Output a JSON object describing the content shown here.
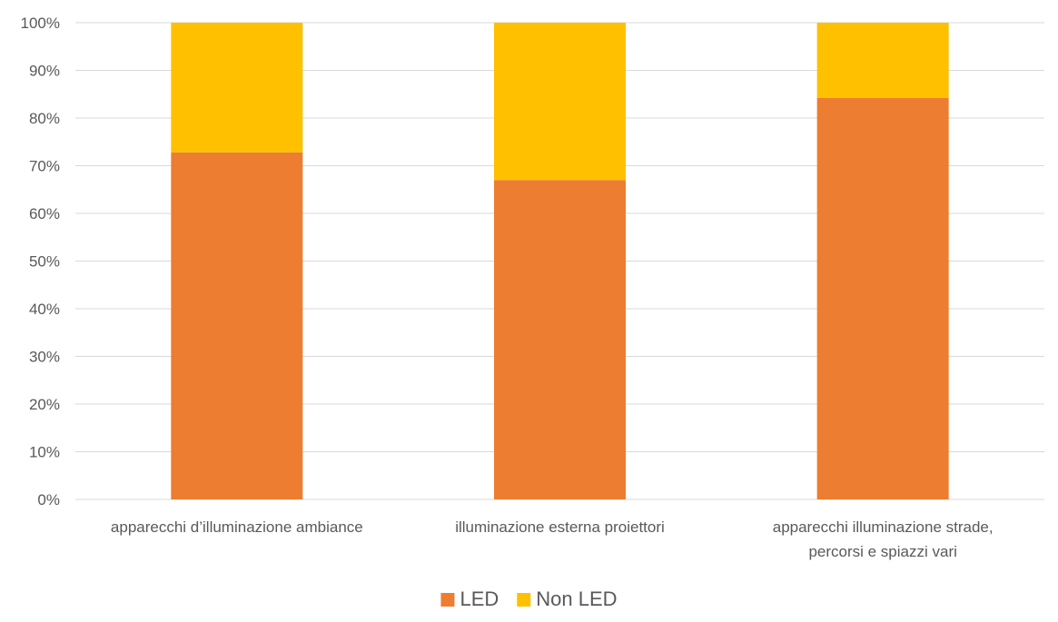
{
  "chart_data": {
    "type": "bar",
    "stacked": "percent",
    "categories": [
      [
        "apparecchi d’illuminazione ambiance"
      ],
      [
        "illuminazione esterna proiettori"
      ],
      [
        "apparecchi illuminazione strade,",
        "percorsi e spiazzi vari"
      ]
    ],
    "series": [
      {
        "name": "LED",
        "values": [
          72.8,
          67.0,
          84.2
        ],
        "color": "#ED7D31"
      },
      {
        "name": "Non LED",
        "values": [
          27.2,
          33.0,
          15.8
        ],
        "color": "#FFC000"
      }
    ],
    "ylim": [
      0,
      100
    ],
    "yticks": [
      "0%",
      "10%",
      "20%",
      "30%",
      "40%",
      "50%",
      "60%",
      "70%",
      "80%",
      "90%",
      "100%"
    ],
    "grid": true,
    "gridColor": "#D9D9D9",
    "legend_position": "bottom"
  }
}
